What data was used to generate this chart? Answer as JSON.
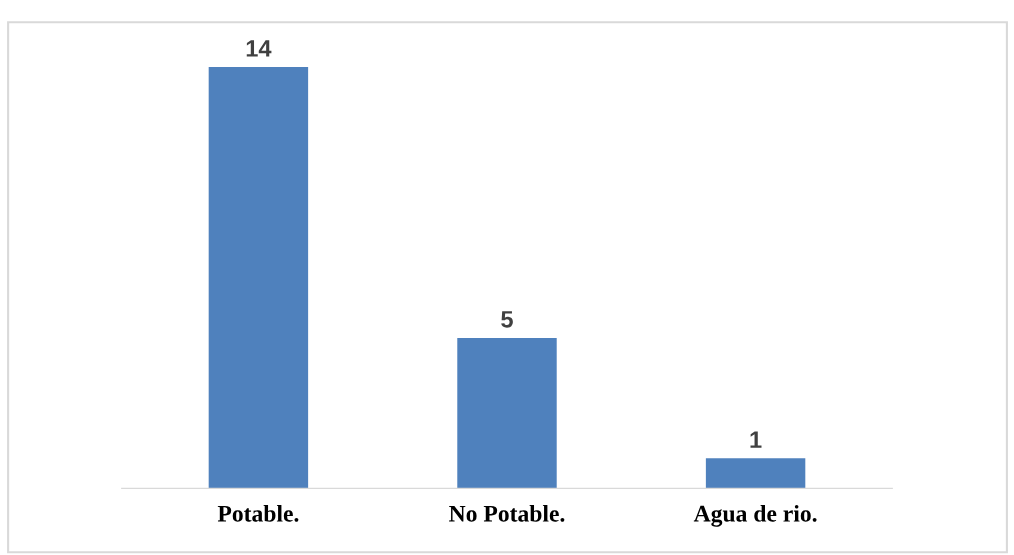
{
  "chart_data": {
    "type": "bar",
    "categories": [
      "Potable.",
      "No Potable.",
      "Agua de rio."
    ],
    "values": [
      14,
      5,
      1
    ],
    "color": "#4f81bd",
    "data_labels": true,
    "grid": false,
    "legend": false
  }
}
